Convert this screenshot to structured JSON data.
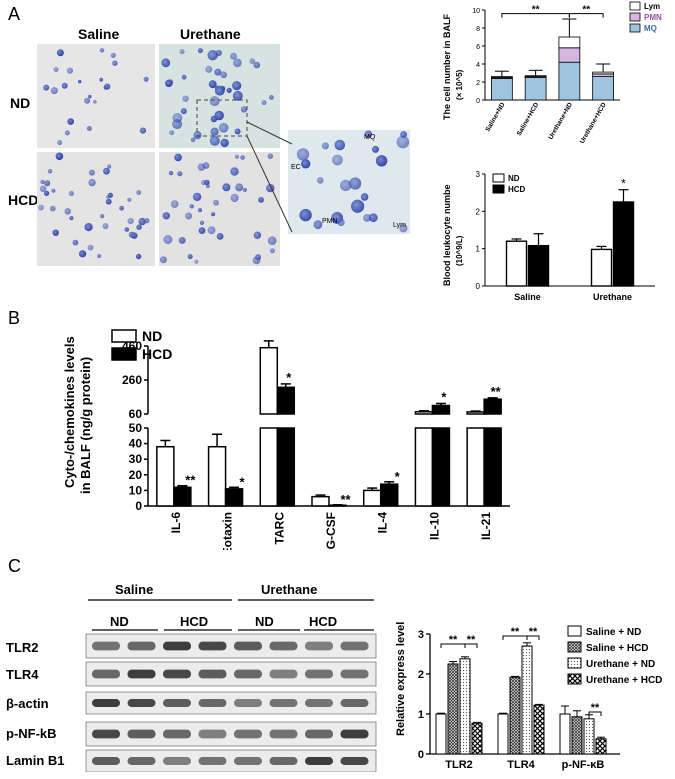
{
  "panels": {
    "a": "A",
    "b": "B",
    "c": "C"
  },
  "micrographs": {
    "col_labels": [
      "Saline",
      "Urethane"
    ],
    "row_labels": [
      "ND",
      "HCD"
    ],
    "inset_labels": {
      "mq": "MQ",
      "ec": "EC",
      "pmn": "PMN",
      "lym": "Lym"
    }
  },
  "colors": {
    "mq": "#9fc4e0",
    "pmn": "#d7b6e0",
    "lym": "#ffffff",
    "hcd": "#000000",
    "nd": "#ffffff"
  },
  "chart_data": [
    {
      "type": "bar",
      "stacked": true,
      "ylabel": "The cell number in BALF",
      "ylabel2": "(× 10^5)",
      "categories": [
        "Saline+ND",
        "Saline+HCD",
        "Urethane+ND",
        "Urethane+HCD"
      ],
      "ylim": [
        0,
        10
      ],
      "yticks": [
        0,
        2,
        4,
        6,
        8,
        10
      ],
      "legend": [
        "Lym",
        "PMN",
        "MQ"
      ],
      "series": [
        {
          "name": "MQ",
          "values": [
            2.4,
            2.5,
            4.2,
            2.6
          ]
        },
        {
          "name": "PMN",
          "values": [
            0.1,
            0.1,
            1.6,
            0.3
          ]
        },
        {
          "name": "Lym",
          "values": [
            0.1,
            0.1,
            1.2,
            0.2
          ]
        }
      ],
      "errors": [
        0.6,
        0.6,
        2.0,
        0.9
      ],
      "significance": [
        "**",
        "**"
      ]
    },
    {
      "type": "bar",
      "ylabel": "Blood leukocyte numbe",
      "ylabel2": "(10^9/L)",
      "categories": [
        "Saline",
        "Urethane"
      ],
      "ylim": [
        0,
        3
      ],
      "yticks": [
        0,
        1,
        2,
        3
      ],
      "legend": [
        "ND",
        "HCD"
      ],
      "series": [
        {
          "name": "ND",
          "values": [
            1.2,
            0.98
          ]
        },
        {
          "name": "HCD",
          "values": [
            1.08,
            2.25
          ]
        }
      ],
      "errors": {
        "ND": [
          0.06,
          0.08
        ],
        "HCD": [
          0.32,
          0.33
        ]
      },
      "significance": [
        "",
        "*"
      ]
    },
    {
      "type": "bar",
      "ylabel": "Cyto-/chemokines levels",
      "ylabel2": "in BALF (ng/g protein)",
      "categories": [
        "IL-6",
        "Eotaxin",
        "TARC",
        "G-CSF",
        "IL-4",
        "IL-10",
        "IL-21"
      ],
      "yticks_lower": [
        0,
        10,
        20,
        30,
        40,
        50
      ],
      "yticks_upper": [
        60,
        260,
        460
      ],
      "legend": [
        "ND",
        "HCD"
      ],
      "series": [
        {
          "name": "ND",
          "values": [
            38,
            38,
            450,
            6,
            10,
            73,
            72
          ]
        },
        {
          "name": "HCD",
          "values": [
            12,
            11,
            217,
            0.5,
            14,
            110,
            147
          ]
        }
      ],
      "errors": {
        "ND": [
          4,
          8,
          40,
          1,
          1.5,
          6,
          5
        ],
        "HCD": [
          1,
          1,
          20,
          0.3,
          1.5,
          12,
          8
        ]
      },
      "significance": [
        "**",
        "*",
        "*",
        "**",
        "*",
        "*",
        "**"
      ]
    },
    {
      "type": "bar",
      "ylabel": "Relative express level",
      "categories": [
        "TLR2",
        "TLR4",
        "p-NF-κB"
      ],
      "ylim": [
        0,
        3
      ],
      "yticks": [
        0,
        1,
        2,
        3
      ],
      "legend": [
        "Saline + ND",
        "Saline + HCD",
        "Urethane + ND",
        "Urethane + HCD"
      ],
      "series": [
        {
          "name": "Saline + ND",
          "values": [
            1.0,
            1.0,
            1.0
          ]
        },
        {
          "name": "Saline + HCD",
          "values": [
            2.25,
            1.92,
            0.93
          ]
        },
        {
          "name": "Urethane + ND",
          "values": [
            2.38,
            2.7,
            0.88
          ]
        },
        {
          "name": "Urethane + HCD",
          "values": [
            0.77,
            1.22,
            0.38
          ]
        }
      ],
      "errors": [
        [
          0.02,
          0.06,
          0.05,
          0.02
        ],
        [
          0.02,
          0.02,
          0.08,
          0.02
        ],
        [
          0.2,
          0.15,
          0.1,
          0.04
        ]
      ],
      "significance": [
        "**",
        "**",
        "**",
        "**",
        "**"
      ]
    }
  ],
  "western": {
    "group_labels": [
      "Saline",
      "Urethane"
    ],
    "sub_labels": [
      "ND",
      "HCD",
      "ND",
      "HCD"
    ],
    "bands": [
      "TLR2",
      "TLR4",
      "β-actin",
      "p-NF-kB",
      "Lamin B1"
    ]
  }
}
